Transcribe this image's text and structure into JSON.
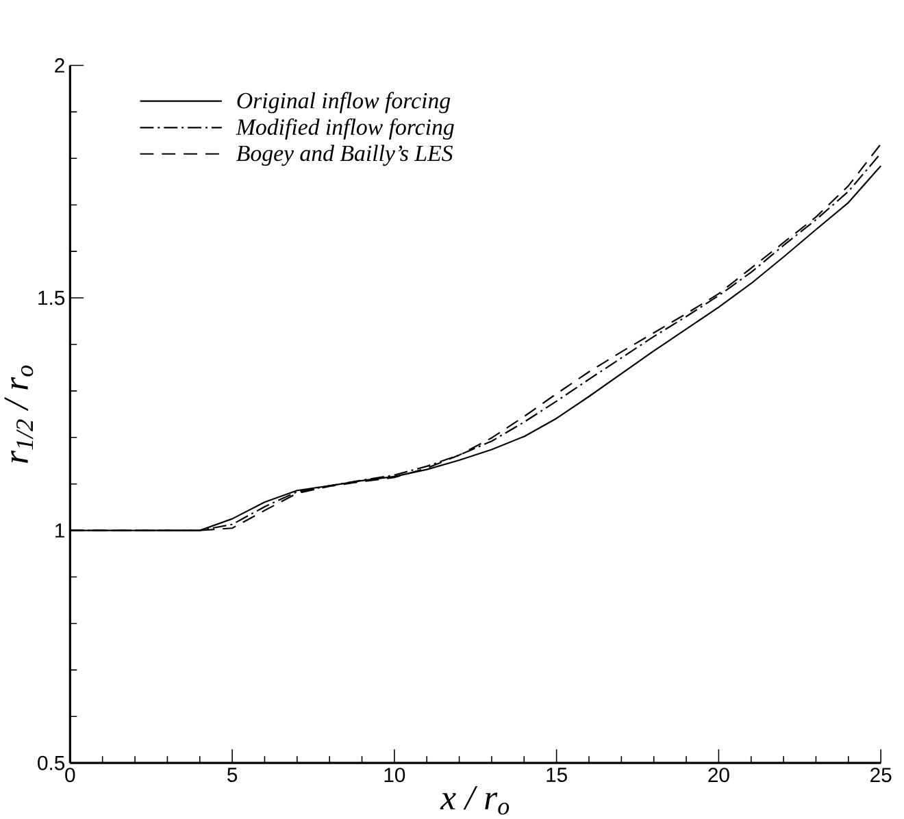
{
  "chart_data": {
    "type": "line",
    "xlabel": "x / r$_{o}$",
    "ylabel": "r$_{1/2}$ / r$_{o}$",
    "x": [
      0,
      1,
      2,
      3,
      4,
      5,
      6,
      7,
      8,
      9,
      10,
      11,
      12,
      13,
      14,
      15,
      16,
      17,
      18,
      19,
      20,
      21,
      22,
      23,
      24,
      25
    ],
    "series": [
      {
        "name": "Original inflow forcing",
        "color": "#000000",
        "line_style": "solid",
        "values": [
          1,
          1,
          1,
          1,
          1,
          1.025,
          1.061,
          1.086,
          1.096,
          1.107,
          1.116,
          1.131,
          1.151,
          1.174,
          1.202,
          1.241,
          1.288,
          1.337,
          1.386,
          1.433,
          1.48,
          1.531,
          1.588,
          1.647,
          1.705,
          1.784
        ]
      },
      {
        "name": "Modified inflow forcing",
        "color": "#000000",
        "line_style": "dashdot",
        "values": [
          1,
          1,
          1,
          1,
          1,
          1.013,
          1.051,
          1.083,
          1.096,
          1.108,
          1.119,
          1.138,
          1.162,
          1.192,
          1.233,
          1.278,
          1.325,
          1.371,
          1.417,
          1.46,
          1.505,
          1.555,
          1.613,
          1.668,
          1.729,
          1.811
        ]
      },
      {
        "name": "Bogey and Bailly’s LES",
        "color": "#000000",
        "line_style": "dashed",
        "values": [
          1,
          1,
          1,
          1,
          1,
          1.005,
          1.043,
          1.08,
          1.095,
          1.105,
          1.114,
          1.134,
          1.162,
          1.199,
          1.245,
          1.294,
          1.341,
          1.384,
          1.425,
          1.466,
          1.509,
          1.564,
          1.619,
          1.674,
          1.741,
          1.831
        ]
      }
    ],
    "xlim": [
      0,
      25
    ],
    "ylim": [
      0.5,
      2
    ],
    "xticks": [
      0,
      5,
      10,
      15,
      20,
      25
    ],
    "yticks": [
      0.5,
      1,
      1.5,
      2
    ],
    "legend": "top left",
    "marker": "none"
  }
}
